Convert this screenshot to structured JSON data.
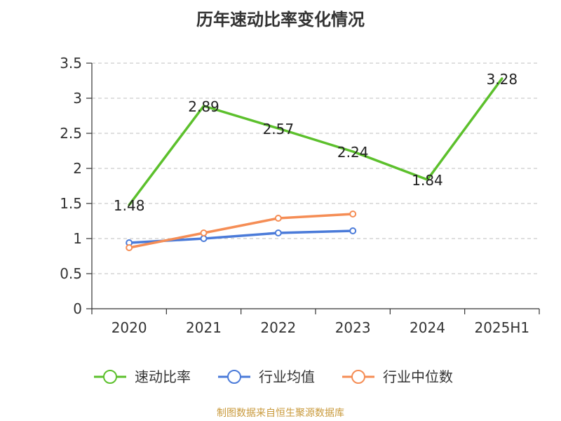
{
  "chart_data": {
    "type": "line",
    "title": "历年速动比率变化情况",
    "categories": [
      "2020",
      "2021",
      "2022",
      "2023",
      "2024",
      "2025H1"
    ],
    "ylim": [
      0,
      3.5
    ],
    "yticks": [
      "0",
      "0.5",
      "1",
      "1.5",
      "2",
      "2.5",
      "3",
      "3.5"
    ],
    "grid": true,
    "legend_position": "bottom",
    "series": [
      {
        "name": "速动比率",
        "color": "#5cc02c",
        "values": [
          1.48,
          2.89,
          2.57,
          2.24,
          1.84,
          3.28
        ],
        "labels": [
          "1.48",
          "2.89",
          "2.57",
          "2.24",
          "1.84",
          "3.28"
        ],
        "markers": false
      },
      {
        "name": "行业均值",
        "color": "#4b7bd9",
        "values": [
          0.94,
          1.0,
          1.08,
          1.11,
          null,
          null
        ],
        "markers": true
      },
      {
        "name": "行业中位数",
        "color": "#f58d55",
        "values": [
          0.87,
          1.08,
          1.29,
          1.35,
          null,
          null
        ],
        "markers": true
      }
    ]
  },
  "source_note": {
    "text": "制图数据来自恒生聚源数据库",
    "color": "#c99a3c"
  }
}
